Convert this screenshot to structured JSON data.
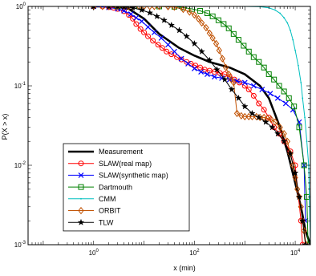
{
  "chart_data": {
    "type": "line",
    "title": "",
    "xlabel": "x (min)",
    "ylabel": "P(X > x)",
    "x_scale": "log",
    "y_scale": "log",
    "xlim": [
      0.05,
      20000
    ],
    "ylim": [
      0.001,
      1
    ],
    "x_ticks": [
      {
        "base": "10",
        "exp": "0",
        "value": 1
      },
      {
        "base": "10",
        "exp": "2",
        "value": 100
      },
      {
        "base": "10",
        "exp": "4",
        "value": 10000
      }
    ],
    "y_ticks": [
      {
        "base": "10",
        "exp": "0",
        "value": 1
      },
      {
        "base": "10",
        "exp": "-1",
        "value": 0.1
      },
      {
        "base": "10",
        "exp": "-2",
        "value": 0.01
      },
      {
        "base": "10",
        "exp": "-3",
        "value": 0.001
      }
    ],
    "grid": false,
    "legend_position": "bottom-left",
    "series": [
      {
        "name": "Measurement",
        "color": "#000000",
        "marker": "none",
        "width": 2.6,
        "points": [
          [
            1,
            1
          ],
          [
            2,
            1
          ],
          [
            3,
            0.99
          ],
          [
            5,
            0.93
          ],
          [
            10,
            0.7
          ],
          [
            20,
            0.45
          ],
          [
            50,
            0.3
          ],
          [
            100,
            0.24
          ],
          [
            200,
            0.2
          ],
          [
            500,
            0.17
          ],
          [
            1000,
            0.14
          ],
          [
            2000,
            0.1
          ],
          [
            3000,
            0.07
          ],
          [
            5000,
            0.03
          ],
          [
            7000,
            0.015
          ],
          [
            10000,
            0.006
          ],
          [
            13000,
            0.003
          ],
          [
            16000,
            0.0015
          ],
          [
            20000,
            0.001
          ]
        ]
      },
      {
        "name": "SLAW(real map)",
        "color": "#ff0000",
        "marker": "circle",
        "width": 1,
        "points": [
          [
            1,
            1
          ],
          [
            1.5,
            1
          ],
          [
            2,
            0.98
          ],
          [
            2.5,
            0.96
          ],
          [
            3,
            0.93
          ],
          [
            4,
            0.87
          ],
          [
            5,
            0.78
          ],
          [
            6,
            0.7
          ],
          [
            7,
            0.6
          ],
          [
            8.5,
            0.52
          ],
          [
            10,
            0.47
          ],
          [
            12,
            0.42
          ],
          [
            15,
            0.37
          ],
          [
            19,
            0.33
          ],
          [
            23,
            0.3
          ],
          [
            28,
            0.27
          ],
          [
            35,
            0.25
          ],
          [
            45,
            0.23
          ],
          [
            55,
            0.215
          ],
          [
            70,
            0.2
          ],
          [
            85,
            0.19
          ],
          [
            105,
            0.18
          ],
          [
            130,
            0.17
          ],
          [
            160,
            0.16
          ],
          [
            200,
            0.155
          ],
          [
            250,
            0.15
          ],
          [
            320,
            0.145
          ],
          [
            400,
            0.14
          ],
          [
            500,
            0.13
          ],
          [
            620,
            0.12
          ],
          [
            780,
            0.11
          ],
          [
            1000,
            0.1
          ],
          [
            1200,
            0.09
          ],
          [
            1500,
            0.075
          ],
          [
            1900,
            0.06
          ],
          [
            2400,
            0.05
          ],
          [
            3000,
            0.04
          ],
          [
            3800,
            0.03
          ],
          [
            4800,
            0.025
          ],
          [
            6000,
            0.02
          ],
          [
            8000,
            0.015
          ],
          [
            10000,
            0.01
          ],
          [
            13000,
            0.002
          ],
          [
            14000,
            0.001
          ]
        ]
      },
      {
        "name": "SLAW(synthetic map)",
        "color": "#0000ff",
        "marker": "x",
        "width": 1,
        "points": [
          [
            1,
            1
          ],
          [
            2,
            0.97
          ],
          [
            3,
            0.93
          ],
          [
            4,
            0.88
          ],
          [
            5.5,
            0.8
          ],
          [
            7,
            0.72
          ],
          [
            9,
            0.65
          ],
          [
            12,
            0.55
          ],
          [
            16,
            0.47
          ],
          [
            22,
            0.4
          ],
          [
            30,
            0.33
          ],
          [
            40,
            0.27
          ],
          [
            55,
            0.22
          ],
          [
            75,
            0.19
          ],
          [
            100,
            0.165
          ],
          [
            135,
            0.15
          ],
          [
            180,
            0.14
          ],
          [
            250,
            0.13
          ],
          [
            350,
            0.125
          ],
          [
            500,
            0.12
          ],
          [
            700,
            0.115
          ],
          [
            1000,
            0.11
          ],
          [
            1500,
            0.1
          ],
          [
            2200,
            0.09
          ],
          [
            3200,
            0.08
          ],
          [
            4500,
            0.07
          ],
          [
            6500,
            0.06
          ],
          [
            9000,
            0.05
          ],
          [
            12000,
            0.035
          ],
          [
            15000,
            0.01
          ],
          [
            16000,
            0.002
          ]
        ]
      },
      {
        "name": "Dartmouth",
        "color": "#008000",
        "marker": "square",
        "width": 1,
        "points": [
          [
            3,
            1
          ],
          [
            8,
            1
          ],
          [
            20,
            1
          ],
          [
            40,
            0.99
          ],
          [
            60,
            0.97
          ],
          [
            90,
            0.93
          ],
          [
            130,
            0.88
          ],
          [
            180,
            0.82
          ],
          [
            230,
            0.75
          ],
          [
            300,
            0.67
          ],
          [
            380,
            0.6
          ],
          [
            480,
            0.53
          ],
          [
            600,
            0.45
          ],
          [
            750,
            0.38
          ],
          [
            950,
            0.32
          ],
          [
            1200,
            0.27
          ],
          [
            1500,
            0.23
          ],
          [
            1900,
            0.2
          ],
          [
            2400,
            0.17
          ],
          [
            3000,
            0.14
          ],
          [
            3800,
            0.12
          ],
          [
            4800,
            0.1
          ],
          [
            6000,
            0.085
          ],
          [
            7500,
            0.07
          ],
          [
            9500,
            0.055
          ],
          [
            12000,
            0.03
          ],
          [
            15000,
            0.01
          ],
          [
            17000,
            0.004
          ],
          [
            18000,
            0.001
          ]
        ]
      },
      {
        "name": "CMM",
        "color": "#00bfbf",
        "marker": "point",
        "width": 1,
        "points": [
          [
            100,
            1
          ],
          [
            1000,
            1
          ],
          [
            2000,
            0.99
          ],
          [
            3000,
            0.96
          ],
          [
            4000,
            0.9
          ],
          [
            5000,
            0.82
          ],
          [
            6000,
            0.72
          ],
          [
            7000,
            0.62
          ],
          [
            8000,
            0.5
          ],
          [
            9000,
            0.38
          ],
          [
            10000,
            0.28
          ],
          [
            11500,
            0.18
          ],
          [
            13000,
            0.11
          ],
          [
            14000,
            0.07
          ],
          [
            15500,
            0.04
          ],
          [
            17000,
            0.02
          ],
          [
            18500,
            0.01
          ],
          [
            20000,
            0.001
          ]
        ]
      },
      {
        "name": "ORBIT",
        "color": "#c05000",
        "marker": "diamond",
        "width": 1,
        "points": [
          [
            1,
            1
          ],
          [
            1.5,
            1
          ],
          [
            2,
            1
          ],
          [
            3,
            1
          ],
          [
            4,
            1
          ],
          [
            5,
            1
          ],
          [
            6,
            1
          ],
          [
            8,
            1
          ],
          [
            10,
            1
          ],
          [
            13,
            1
          ],
          [
            16,
            1
          ],
          [
            20,
            1
          ],
          [
            30,
            0.99
          ],
          [
            40,
            0.98
          ],
          [
            60,
            0.92
          ],
          [
            80,
            0.85
          ],
          [
            100,
            0.78
          ],
          [
            120,
            0.7
          ],
          [
            140,
            0.62
          ],
          [
            170,
            0.54
          ],
          [
            200,
            0.46
          ],
          [
            230,
            0.4
          ],
          [
            270,
            0.34
          ],
          [
            310,
            0.28
          ],
          [
            360,
            0.22
          ],
          [
            420,
            0.17
          ],
          [
            480,
            0.14
          ],
          [
            540,
            0.12
          ],
          [
            600,
            0.11
          ],
          [
            700,
            0.045
          ],
          [
            850,
            0.042
          ],
          [
            1000,
            0.041
          ],
          [
            1200,
            0.041
          ],
          [
            1400,
            0.041
          ],
          [
            1700,
            0.041
          ],
          [
            2000,
            0.04
          ],
          [
            2400,
            0.04
          ],
          [
            2800,
            0.039
          ],
          [
            3300,
            0.038
          ],
          [
            4000,
            0.035
          ],
          [
            5000,
            0.03
          ],
          [
            6000,
            0.025
          ],
          [
            7000,
            0.02
          ],
          [
            8000,
            0.014
          ],
          [
            9000,
            0.01
          ],
          [
            10000,
            0.007
          ],
          [
            11000,
            0.005
          ],
          [
            12000,
            0.004
          ],
          [
            13000,
            0.003
          ],
          [
            14000,
            0.002
          ],
          [
            15000,
            0.0015
          ],
          [
            16500,
            0.001
          ]
        ]
      },
      {
        "name": "TLW",
        "color": "#000000",
        "marker": "star",
        "width": 1,
        "points": [
          [
            1,
            1
          ],
          [
            2,
            1
          ],
          [
            3,
            1
          ],
          [
            4,
            0.99
          ],
          [
            6,
            0.96
          ],
          [
            9,
            0.9
          ],
          [
            13,
            0.83
          ],
          [
            18,
            0.75
          ],
          [
            25,
            0.67
          ],
          [
            35,
            0.58
          ],
          [
            50,
            0.5
          ],
          [
            70,
            0.42
          ],
          [
            100,
            0.34
          ],
          [
            140,
            0.27
          ],
          [
            200,
            0.21
          ],
          [
            280,
            0.16
          ],
          [
            400,
            0.12
          ],
          [
            550,
            0.09
          ],
          [
            750,
            0.07
          ],
          [
            1000,
            0.055
          ],
          [
            1400,
            0.045
          ],
          [
            1900,
            0.04
          ],
          [
            2600,
            0.035
          ],
          [
            3500,
            0.03
          ],
          [
            4500,
            0.025
          ],
          [
            6000,
            0.02
          ],
          [
            8000,
            0.014
          ],
          [
            10000,
            0.008
          ],
          [
            12000,
            0.004
          ],
          [
            14000,
            0.002
          ],
          [
            16000,
            0.001
          ]
        ]
      }
    ]
  }
}
